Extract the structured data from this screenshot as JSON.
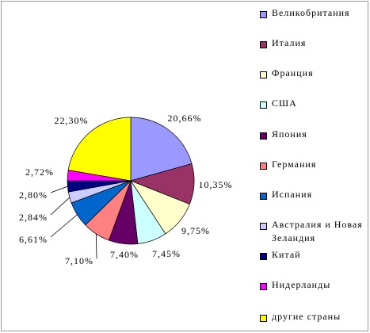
{
  "chart_data": {
    "type": "pie",
    "categories": [
      "Великобритания",
      "Италия",
      "Франция",
      "США",
      "Япония",
      "Германия",
      "Испания",
      "Австралия и Новая Зеландия",
      "Китай",
      "Нидерланды",
      "другие страны"
    ],
    "values": [
      20.66,
      10.35,
      9.75,
      7.45,
      7.4,
      7.1,
      6.61,
      2.84,
      2.8,
      2.72,
      22.3
    ],
    "value_labels": [
      "20,66%",
      "10,35%",
      "9,75%",
      "7,45%",
      "7,40%",
      "7,10%",
      "6,61%",
      "2,84%",
      "2,80%",
      "2,72%",
      "22,30%"
    ],
    "colors": [
      "#9999ff",
      "#993366",
      "#ffffcc",
      "#ccffff",
      "#660066",
      "#ff8080",
      "#0066cc",
      "#ccccff",
      "#000080",
      "#ff00ff",
      "#ffff00"
    ]
  }
}
